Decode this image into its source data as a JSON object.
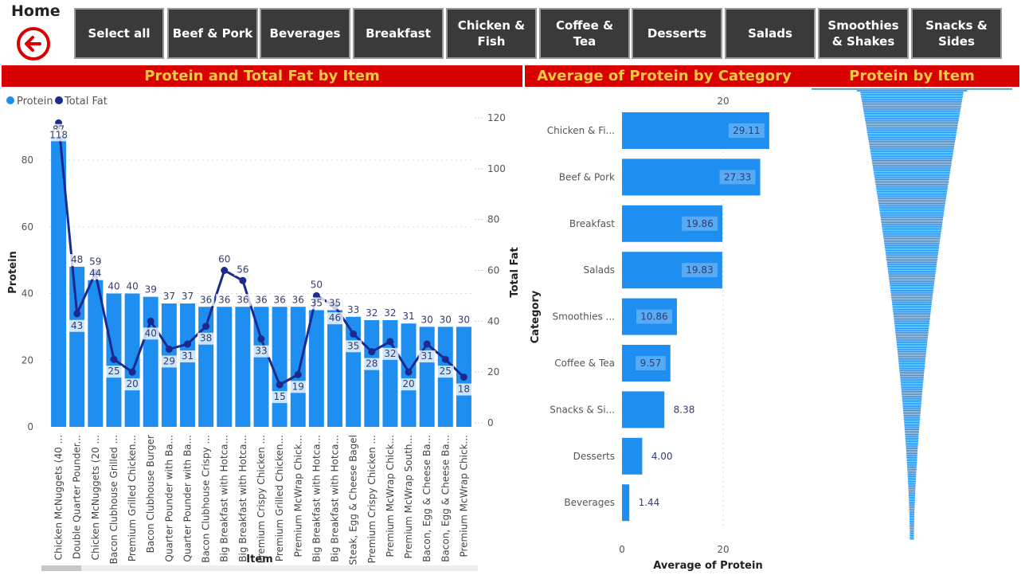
{
  "header": {
    "home_label": "Home",
    "back_icon": "arrow-left-circle-icon",
    "accent_color": "#d90000",
    "title_color": "#f5c842"
  },
  "nav": {
    "buttons": [
      {
        "line1": "Select all",
        "line2": ""
      },
      {
        "line1": "Beef & Pork",
        "line2": ""
      },
      {
        "line1": "Beverages",
        "line2": ""
      },
      {
        "line1": "Breakfast",
        "line2": ""
      },
      {
        "line1": "Chicken &",
        "line2": "Fish"
      },
      {
        "line1": "Coffee &",
        "line2": "Tea"
      },
      {
        "line1": "Desserts",
        "line2": ""
      },
      {
        "line1": "Salads",
        "line2": ""
      },
      {
        "line1": "Smoothies",
        "line2": "& Shakes"
      },
      {
        "line1": "Snacks &",
        "line2": "Sides"
      }
    ]
  },
  "panels": {
    "left_title": "Protein and Total Fat by Item",
    "middle_title": "Average of Protein by Category",
    "right_title": "Protein by Item"
  },
  "chart_data": [
    {
      "type": "bar",
      "title": "Protein and Total Fat by Item",
      "xlabel": "Item",
      "ylabel": "Protein",
      "y2label": "Total Fat",
      "legend": [
        "Protein",
        "Total Fat"
      ],
      "legend_position": "top-left",
      "colors": {
        "protein": "#1f8ef1",
        "fat": "#1a2a8e"
      },
      "ylim": [
        0,
        90
      ],
      "y2lim": [
        0,
        125
      ],
      "yticks": [
        0,
        20,
        40,
        60,
        80
      ],
      "y2ticks": [
        0,
        20,
        40,
        60,
        80,
        100,
        120
      ],
      "categories": [
        "Chicken McNuggets (40 ...",
        "Double Quarter Pounder...",
        "Chicken McNuggets (20 ...",
        "Bacon Clubhouse Grilled ...",
        "Premium Grilled Chicken...",
        "Bacon Clubhouse Burger",
        "Quarter Pounder with Ba...",
        "Quarter Pounder with Ba...",
        "Bacon Clubhouse Crispy ...",
        "Big Breakfast with Hotca...",
        "Big Breakfast with Hotca...",
        "Premium Crispy Chicken ...",
        "Premium Grilled Chicken...",
        "Premium McWrap Chick...",
        "Big Breakfast with Hotca...",
        "Big Breakfast with Hotca...",
        "Steak, Egg & Cheese Bagel",
        "Premium Crispy Chicken ...",
        "Premium McWrap Chick...",
        "Premium McWrap South...",
        "Bacon, Egg & Cheese Ba...",
        "Bacon, Egg & Cheese Ba...",
        "Premium McWrap Chick..."
      ],
      "series": [
        {
          "name": "Protein",
          "type": "bar",
          "axis": "left",
          "values": [
            87,
            48,
            44,
            40,
            40,
            39,
            37,
            37,
            36,
            36,
            36,
            36,
            36,
            36,
            35,
            35,
            33,
            32,
            32,
            31,
            30,
            30,
            30
          ]
        },
        {
          "name": "Total Fat",
          "type": "line",
          "axis": "right",
          "values": [
            118,
            43,
            59,
            25,
            20,
            40,
            29,
            31,
            38,
            60,
            56,
            33,
            15,
            19,
            50,
            46,
            35,
            28,
            32,
            20,
            31,
            25,
            18
          ]
        }
      ]
    },
    {
      "type": "bar",
      "orientation": "horizontal",
      "title": "Average of Protein by Category",
      "xlabel": "Average of Protein",
      "ylabel": "Category",
      "xlim": [
        0,
        30
      ],
      "xticks": [
        0,
        20
      ],
      "categories": [
        "Chicken & Fi...",
        "Beef & Pork",
        "Breakfast",
        "Salads",
        "Smoothies ...",
        "Coffee & Tea",
        "Snacks & Si...",
        "Desserts",
        "Beverages"
      ],
      "values": [
        29.11,
        27.33,
        19.86,
        19.83,
        10.86,
        9.57,
        8.38,
        4.0,
        1.44
      ],
      "labels": [
        "29.11",
        "27.33",
        "19.86",
        "19.83",
        "10.86",
        "9.57",
        "8.38",
        "4.00",
        "1.44"
      ],
      "color": "#1f8ef1"
    },
    {
      "type": "bar",
      "orientation": "horizontal",
      "style": "funnel",
      "title": "Protein by Item",
      "color": "#1f8ef1",
      "max": 87,
      "count": 260
    }
  ]
}
